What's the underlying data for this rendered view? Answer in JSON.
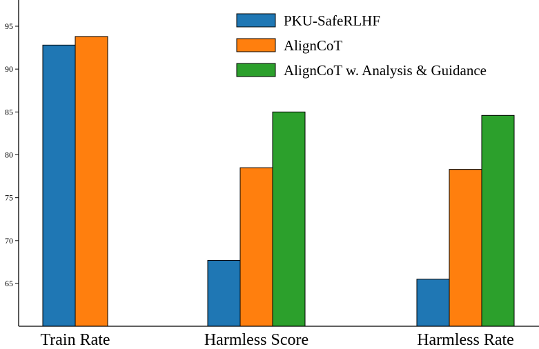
{
  "chart_data": {
    "type": "bar",
    "categories": [
      "Train Rate",
      "Harmless Score",
      "Harmless Rate"
    ],
    "series": [
      {
        "name": "PKU-SafeRLHF",
        "color": "#1f77b4",
        "values": [
          92.8,
          67.7,
          65.5
        ]
      },
      {
        "name": "AlignCoT",
        "color": "#ff7f0e",
        "values": [
          93.8,
          78.5,
          78.3
        ]
      },
      {
        "name": "AlignCoT w. Analysis & Guidance",
        "color": "#2ca02c",
        "values": [
          null,
          85.0,
          84.6
        ]
      }
    ],
    "yticks": [
      "65",
      "70",
      "75",
      "80",
      "85",
      "90",
      "95"
    ],
    "ylim": [
      60,
      98
    ],
    "grid": false,
    "legend_position": "top-right"
  }
}
